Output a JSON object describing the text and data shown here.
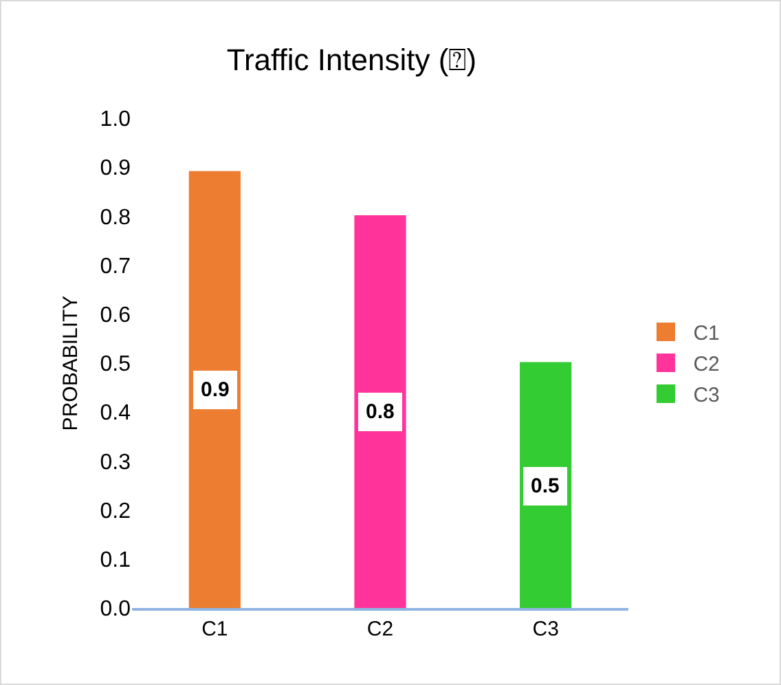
{
  "chart_data": {
    "type": "bar",
    "title": "Traffic Intensity (⍰)",
    "ylabel": "PROBABILITY",
    "categories": [
      "C1",
      "C2",
      "C3"
    ],
    "series": [
      {
        "name": "C1",
        "color": "#ed7d31",
        "values": [
          0.89,
          null,
          null
        ],
        "value_labels": [
          "0.9",
          null,
          null
        ]
      },
      {
        "name": "C2",
        "color": "#ff3399",
        "values": [
          null,
          0.8,
          null
        ],
        "value_labels": [
          null,
          "0.8",
          null
        ]
      },
      {
        "name": "C3",
        "color": "#33cc33",
        "values": [
          null,
          null,
          0.5
        ],
        "value_labels": [
          null,
          null,
          "0.5"
        ]
      }
    ],
    "ylim": [
      0,
      1
    ],
    "yticks": [
      {
        "value": 0,
        "label": "0.0"
      },
      0.1,
      0.2,
      0.3,
      0.4,
      0.5,
      0.6,
      0.7,
      0.8,
      0.9,
      {
        "value": 1,
        "label": "1.0"
      }
    ],
    "grid": false,
    "legend": "right"
  }
}
